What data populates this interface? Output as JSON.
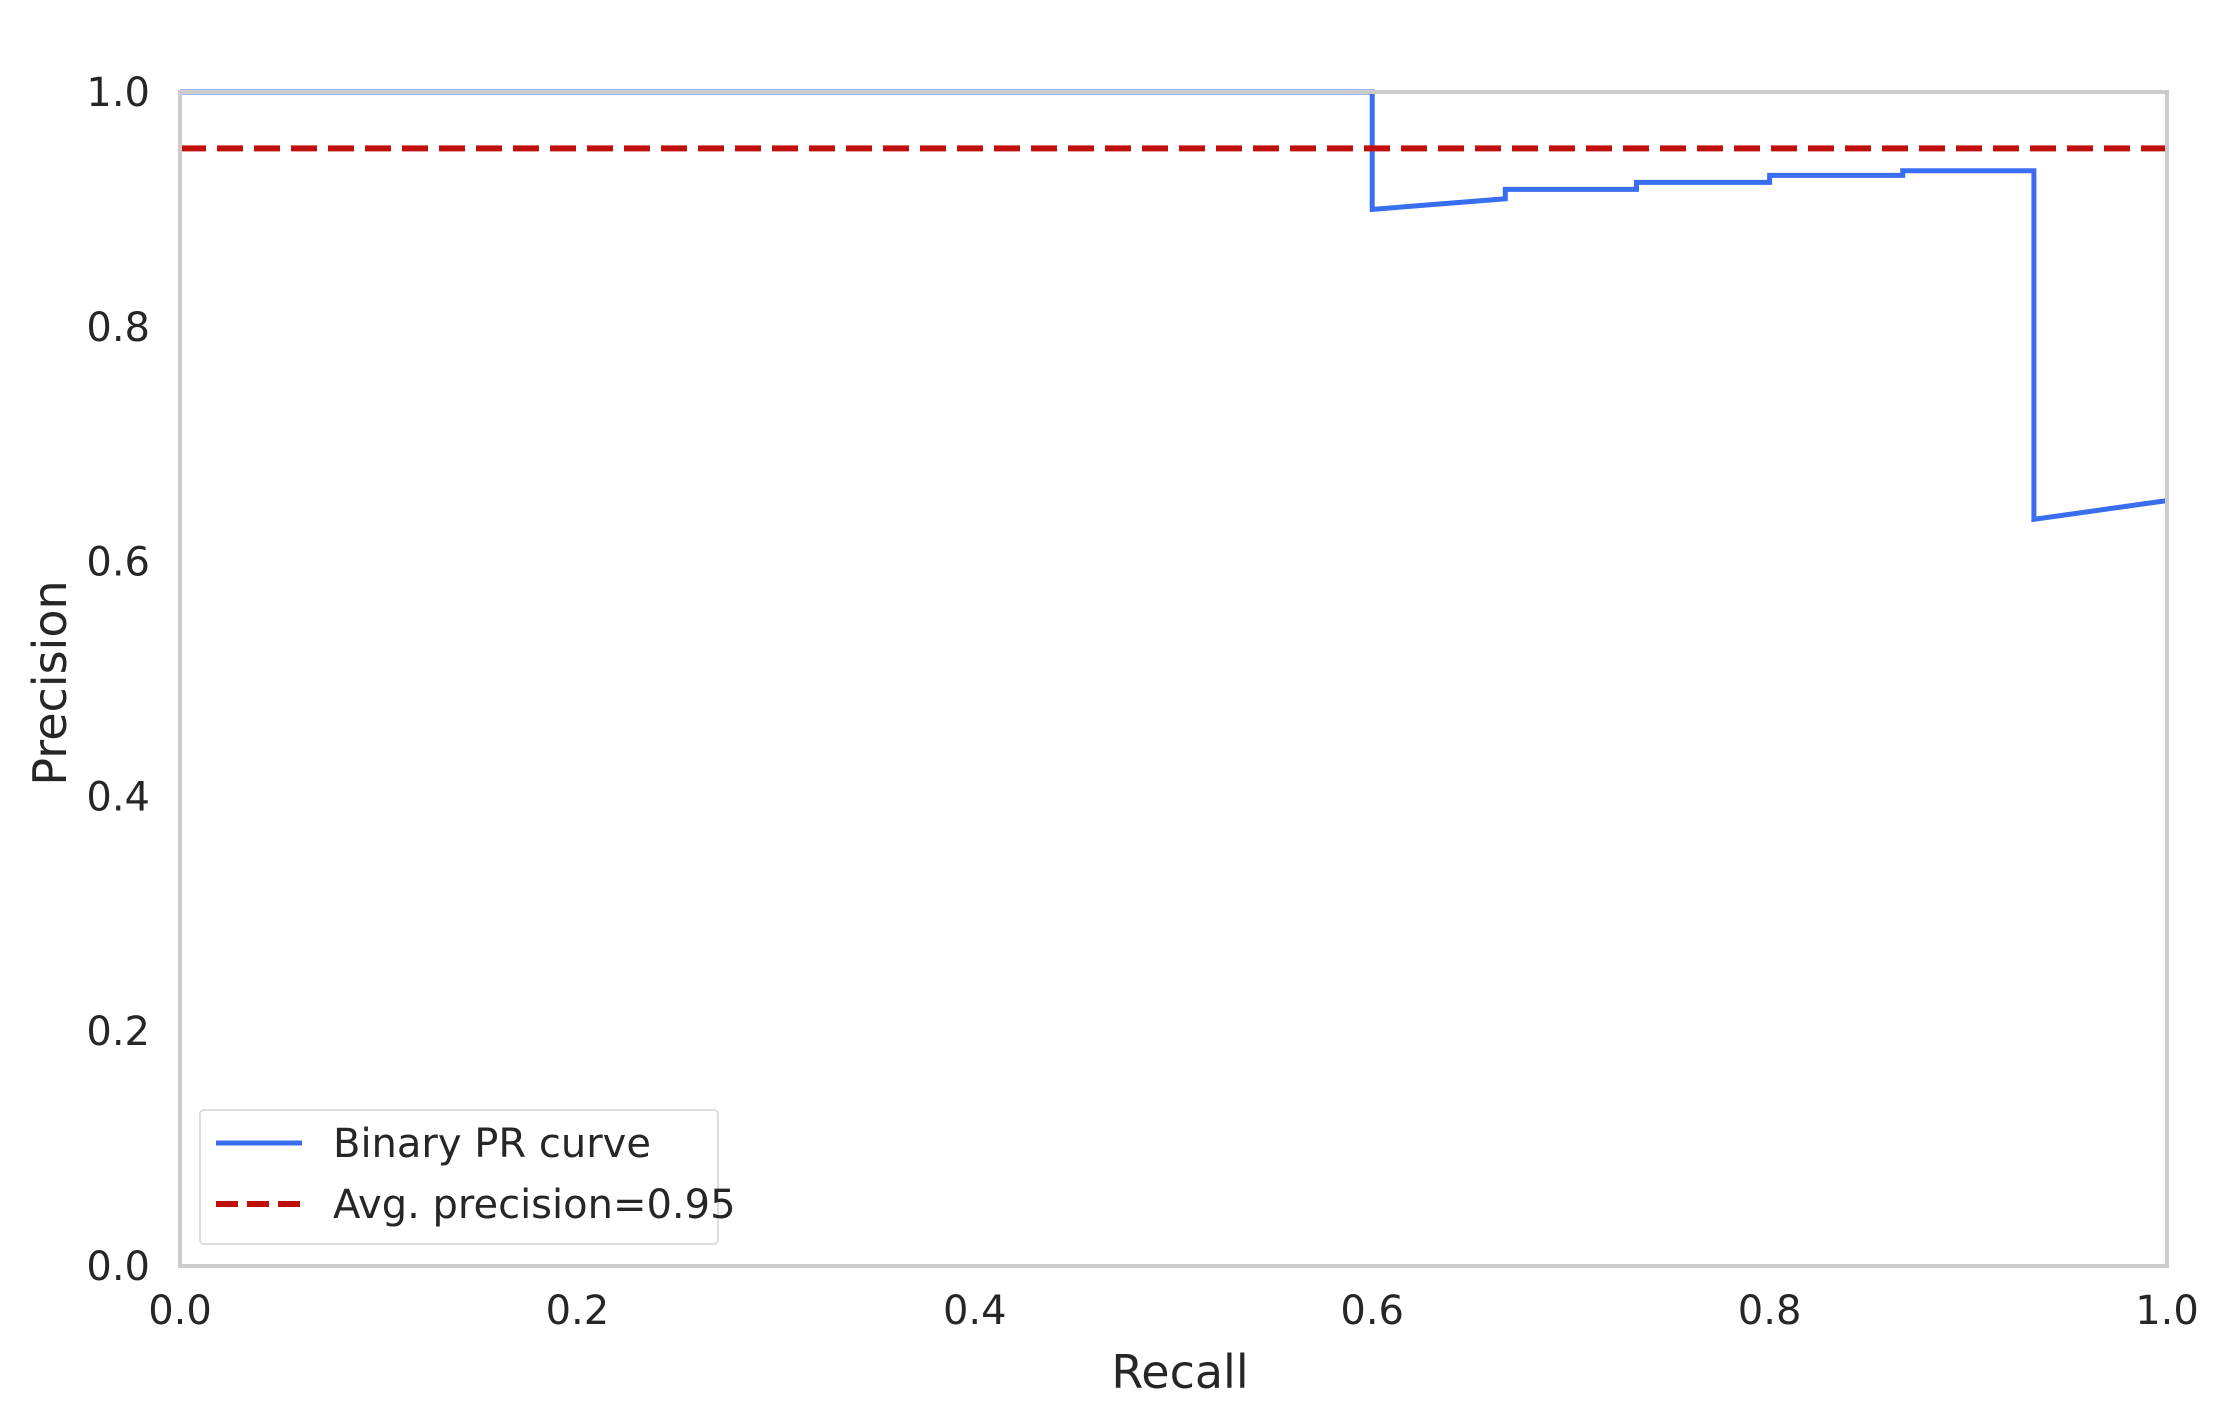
{
  "chart_data": {
    "type": "line",
    "title": "",
    "xlabel": "Recall",
    "ylabel": "Precision",
    "xlim": [
      0.0,
      1.0
    ],
    "ylim": [
      0.0,
      1.0
    ],
    "xticks": [
      "0.0",
      "0.2",
      "0.4",
      "0.6",
      "0.8",
      "1.0"
    ],
    "yticks": [
      "0.0",
      "0.2",
      "0.4",
      "0.6",
      "0.8",
      "1.0"
    ],
    "grid": false,
    "legend_position": "lower-left",
    "series": [
      {
        "name": "Binary PR curve",
        "style": "step",
        "color": "#3a6ef0",
        "x": [
          0.0,
          0.6,
          0.6,
          0.667,
          0.667,
          0.733,
          0.733,
          0.8,
          0.8,
          0.867,
          0.867,
          0.933,
          0.933,
          1.0
        ],
        "y": [
          1.0,
          1.0,
          0.9,
          0.909,
          0.917,
          0.917,
          0.923,
          0.923,
          0.929,
          0.929,
          0.933,
          0.933,
          0.636,
          0.652
        ]
      },
      {
        "name": "Avg. precision=0.95",
        "style": "dashed",
        "color": "#c0100c",
        "x": [
          0.0,
          1.0
        ],
        "y": [
          0.952,
          0.952
        ]
      }
    ]
  },
  "colors": {
    "frame": "#cccccc",
    "legend_border": "#dddddd",
    "text": "#262626"
  }
}
